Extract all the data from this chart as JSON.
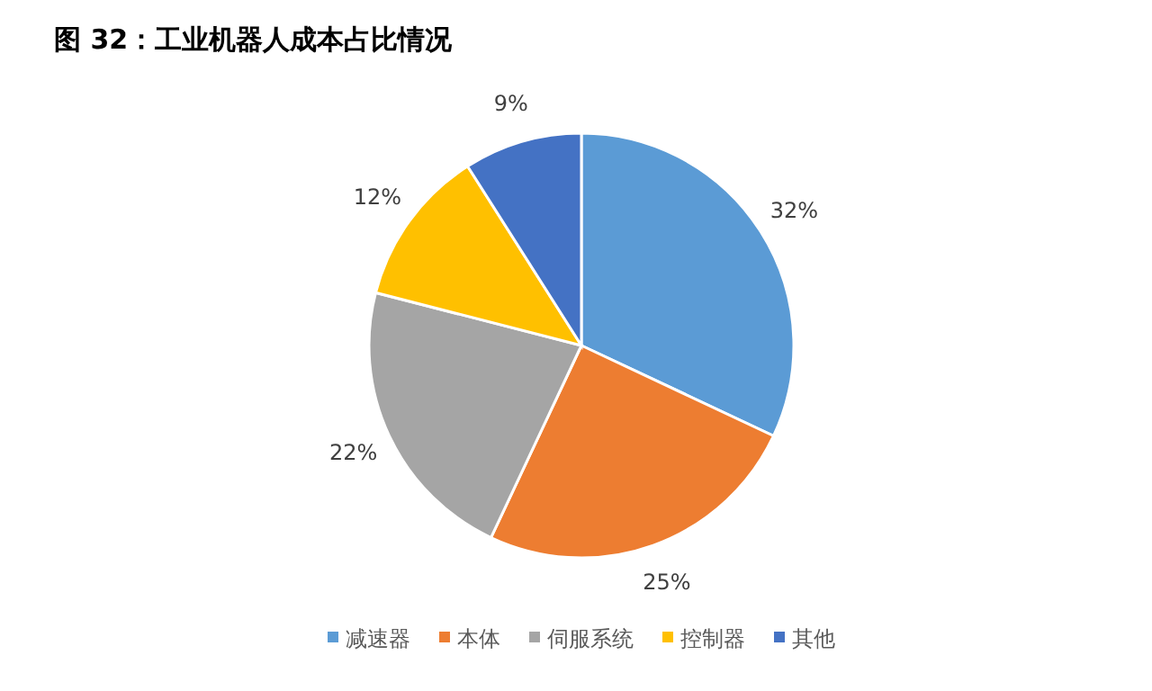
{
  "chart_data": {
    "type": "pie",
    "title": "图 32：工业机器人成本占比情况",
    "categories": [
      "减速器",
      "本体",
      "伺服系统",
      "控制器",
      "其他"
    ],
    "values": [
      32,
      25,
      22,
      12,
      9
    ],
    "value_labels": [
      "32%",
      "25%",
      "22%",
      "12%",
      "9%"
    ],
    "colors": [
      "#5b9bd5",
      "#ed7d31",
      "#a5a5a5",
      "#ffc000",
      "#4472c4"
    ],
    "legend": "bottom"
  }
}
